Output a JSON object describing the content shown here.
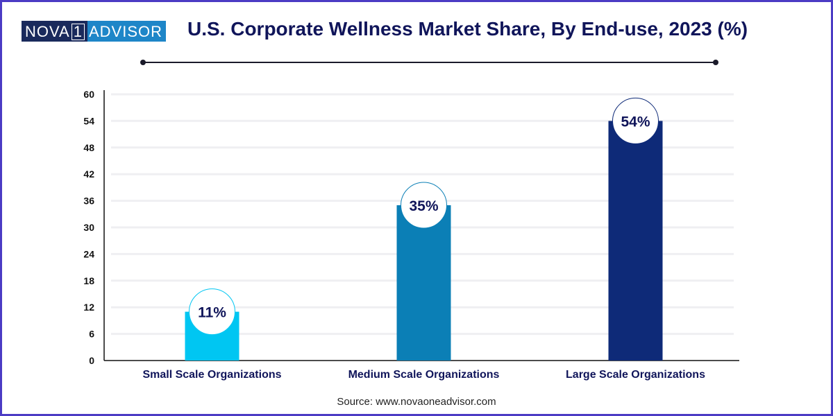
{
  "logo": {
    "left": "NOVA",
    "one": "1",
    "right": "ADVISOR"
  },
  "title": "U.S. Corporate Wellness Market Share, By End-use, 2023 (%)",
  "source": "Source: www.novaoneadvisor.com",
  "colors": {
    "small": "#00c6f2",
    "medium": "#0b7fb6",
    "large": "#0e2a78",
    "title": "#10155a"
  },
  "chart_data": {
    "type": "bar",
    "title": "U.S. Corporate Wellness Market Share, By End-use, 2023 (%)",
    "categories": [
      "Small Scale Organizations",
      "Medium Scale Organizations",
      "Large Scale Organizations"
    ],
    "values": [
      11,
      35,
      54
    ],
    "labels": [
      "11%",
      "35%",
      "54%"
    ],
    "ylim": [
      0,
      60
    ],
    "yticks": [
      "0",
      "6",
      "12",
      "18",
      "24",
      "30",
      "36",
      "42",
      "48",
      "54",
      "60"
    ],
    "xlabel": "",
    "ylabel": "",
    "grid": true
  }
}
